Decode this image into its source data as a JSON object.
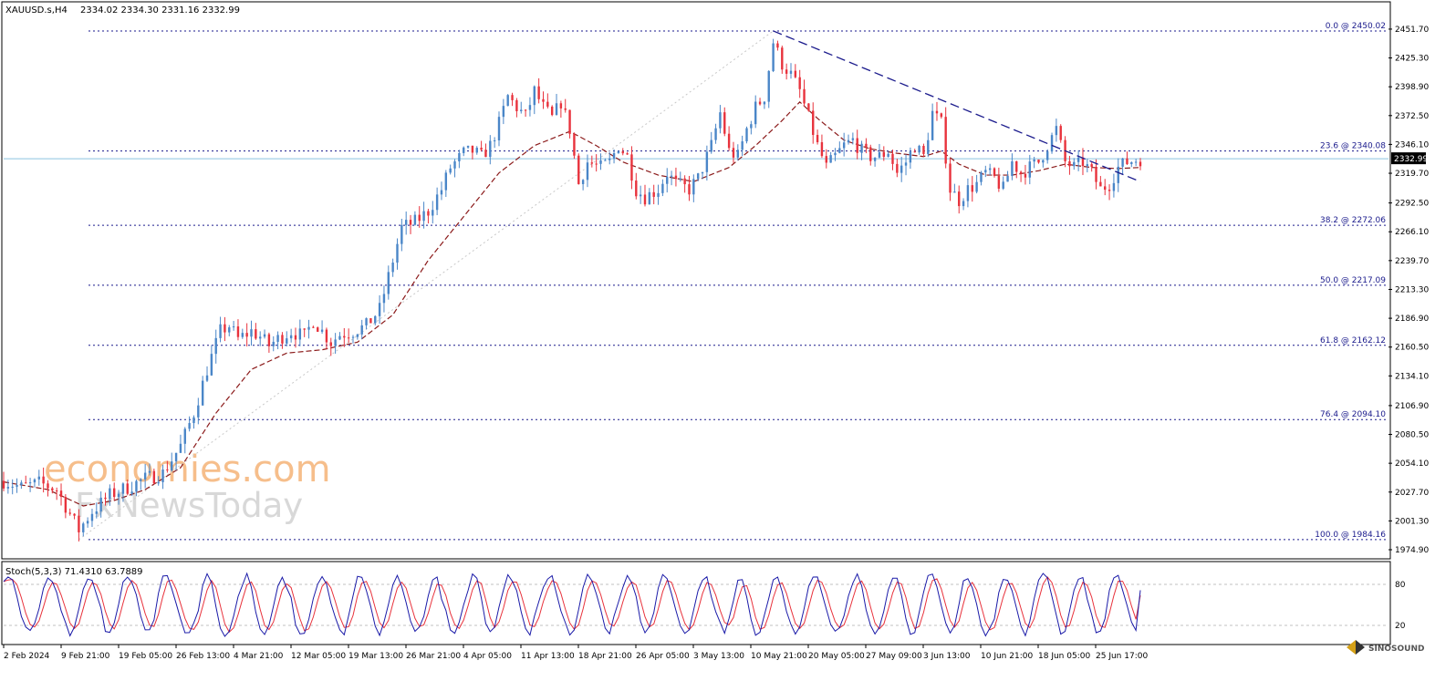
{
  "header": {
    "symbol": "XAUUSD.s,H4",
    "ohlc": "2334.02 2334.30 2331.16 2332.99"
  },
  "current_price_label": "2332.99",
  "watermark": {
    "line1": "economies.com",
    "line2": "FxNewsToday"
  },
  "logo_text": "SINOSOUND",
  "colors": {
    "bull": "#4a86c8",
    "bear": "#e8323c",
    "ma": "#8b1a1a",
    "fib": "#1a1a8c",
    "trend": "#1a1a8c",
    "stoch_main": "#1a1aa8",
    "stoch_signal": "#e8323c",
    "grid": "#c0c0c0",
    "text": "#000000"
  },
  "chart_data": [
    {
      "type": "candlestick",
      "title": "XAUUSD.s,H4",
      "ylim": [
        1974.9,
        2460.0
      ],
      "y_ticks": [
        "2451.70",
        "2425.30",
        "2398.90",
        "2372.50",
        "2346.10",
        "2319.70",
        "2292.50",
        "2266.10",
        "2239.70",
        "2213.30",
        "2186.90",
        "2160.50",
        "2134.10",
        "2106.90",
        "2080.50",
        "2054.10",
        "2027.70",
        "2001.30",
        "1974.90"
      ],
      "x_ticks": [
        "2 Feb 2024",
        "9 Feb 21:00",
        "19 Feb 05:00",
        "26 Feb 13:00",
        "4 Mar 21:00",
        "12 Mar 05:00",
        "19 Mar 13:00",
        "26 Mar 21:00",
        "4 Apr 05:00",
        "11 Apr 13:00",
        "18 Apr 21:00",
        "26 Apr 05:00",
        "3 May 13:00",
        "10 May 21:00",
        "20 May 05:00",
        "27 May 09:00",
        "3 Jun 13:00",
        "10 Jun 21:00",
        "18 Jun 05:00",
        "25 Jun 17:00"
      ],
      "current_price": 2332.99,
      "price_path": [
        [
          0,
          2038
        ],
        [
          4,
          2032
        ],
        [
          8,
          2036
        ],
        [
          12,
          2030
        ],
        [
          14,
          2015
        ],
        [
          17,
          1993
        ],
        [
          20,
          2010
        ],
        [
          24,
          2025
        ],
        [
          28,
          2032
        ],
        [
          32,
          2040
        ],
        [
          36,
          2045
        ],
        [
          40,
          2070
        ],
        [
          43,
          2100
        ],
        [
          46,
          2140
        ],
        [
          49,
          2175
        ],
        [
          51,
          2180
        ],
        [
          53,
          2168
        ],
        [
          56,
          2175
        ],
        [
          58,
          2170
        ],
        [
          60,
          2162
        ],
        [
          62,
          2168
        ],
        [
          65,
          2175
        ],
        [
          68,
          2170
        ],
        [
          70,
          2185
        ],
        [
          72,
          2175
        ],
        [
          74,
          2165
        ],
        [
          76,
          2172
        ],
        [
          79,
          2175
        ],
        [
          82,
          2180
        ],
        [
          85,
          2195
        ],
        [
          88,
          2240
        ],
        [
          90,
          2270
        ],
        [
          93,
          2275
        ],
        [
          96,
          2285
        ],
        [
          99,
          2305
        ],
        [
          101,
          2325
        ],
        [
          104,
          2338
        ],
        [
          106,
          2340
        ],
        [
          108,
          2335
        ],
        [
          110,
          2345
        ],
        [
          112,
          2365
        ],
        [
          114,
          2390
        ],
        [
          116,
          2380
        ],
        [
          118,
          2372
        ],
        [
          120,
          2395
        ],
        [
          122,
          2380
        ],
        [
          124,
          2370
        ],
        [
          126,
          2385
        ],
        [
          128,
          2360
        ],
        [
          130,
          2310
        ],
        [
          132,
          2330
        ],
        [
          135,
          2325
        ],
        [
          137,
          2330
        ],
        [
          139,
          2345
        ],
        [
          141,
          2335
        ],
        [
          143,
          2305
        ],
        [
          145,
          2298
        ],
        [
          148,
          2305
        ],
        [
          150,
          2320
        ],
        [
          152,
          2310
        ],
        [
          155,
          2305
        ],
        [
          157,
          2315
        ],
        [
          160,
          2345
        ],
        [
          162,
          2375
        ],
        [
          164,
          2340
        ],
        [
          166,
          2335
        ],
        [
          168,
          2360
        ],
        [
          170,
          2380
        ],
        [
          172,
          2390
        ],
        [
          174,
          2440
        ],
        [
          176,
          2420
        ],
        [
          178,
          2410
        ],
        [
          180,
          2395
        ],
        [
          182,
          2370
        ],
        [
          184,
          2345
        ],
        [
          186,
          2325
        ],
        [
          188,
          2335
        ],
        [
          190,
          2345
        ],
        [
          192,
          2350
        ],
        [
          194,
          2340
        ],
        [
          196,
          2335
        ],
        [
          198,
          2335
        ],
        [
          200,
          2340
        ],
        [
          202,
          2320
        ],
        [
          204,
          2330
        ],
        [
          206,
          2345
        ],
        [
          208,
          2335
        ],
        [
          210,
          2375
        ],
        [
          212,
          2365
        ],
        [
          214,
          2305
        ],
        [
          216,
          2295
        ],
        [
          218,
          2305
        ],
        [
          220,
          2310
        ],
        [
          222,
          2320
        ],
        [
          224,
          2315
        ],
        [
          226,
          2305
        ],
        [
          228,
          2330
        ],
        [
          230,
          2320
        ],
        [
          232,
          2325
        ],
        [
          234,
          2330
        ],
        [
          236,
          2345
        ],
        [
          238,
          2360
        ],
        [
          240,
          2330
        ],
        [
          242,
          2325
        ],
        [
          244,
          2330
        ],
        [
          246,
          2320
        ],
        [
          248,
          2305
        ],
        [
          250,
          2310
        ],
        [
          252,
          2325
        ],
        [
          254,
          2330
        ],
        [
          256,
          2332
        ],
        [
          257,
          2333
        ]
      ],
      "moving_average": [
        [
          0,
          2037
        ],
        [
          10,
          2030
        ],
        [
          18,
          2015
        ],
        [
          25,
          2020
        ],
        [
          32,
          2030
        ],
        [
          40,
          2050
        ],
        [
          48,
          2100
        ],
        [
          56,
          2140
        ],
        [
          64,
          2155
        ],
        [
          72,
          2158
        ],
        [
          80,
          2165
        ],
        [
          88,
          2190
        ],
        [
          96,
          2240
        ],
        [
          104,
          2280
        ],
        [
          112,
          2320
        ],
        [
          120,
          2345
        ],
        [
          128,
          2358
        ],
        [
          134,
          2345
        ],
        [
          140,
          2330
        ],
        [
          148,
          2318
        ],
        [
          156,
          2312
        ],
        [
          164,
          2325
        ],
        [
          170,
          2345
        ],
        [
          176,
          2368
        ],
        [
          180,
          2385
        ],
        [
          184,
          2370
        ],
        [
          190,
          2350
        ],
        [
          196,
          2342
        ],
        [
          202,
          2338
        ],
        [
          208,
          2335
        ],
        [
          212,
          2340
        ],
        [
          216,
          2328
        ],
        [
          222,
          2318
        ],
        [
          228,
          2318
        ],
        [
          234,
          2322
        ],
        [
          240,
          2328
        ],
        [
          246,
          2325
        ],
        [
          252,
          2324
        ],
        [
          257,
          2325
        ]
      ]
    },
    {
      "type": "fibonacci_levels",
      "levels": [
        {
          "label": "0.0 @ 2450.02",
          "value": 2450.02
        },
        {
          "label": "23.6 @ 2340.08",
          "value": 2340.08
        },
        {
          "label": "38.2 @ 2272.06",
          "value": 2272.06
        },
        {
          "label": "50.0 @ 2217.09",
          "value": 2217.09
        },
        {
          "label": "61.8 @ 2162.12",
          "value": 2162.12
        },
        {
          "label": "76.4 @ 2094.10",
          "value": 2094.1
        },
        {
          "label": "100.0 @ 1984.16",
          "value": 1984.16
        }
      ],
      "trendline": [
        [
          174,
          2450.02
        ],
        [
          257,
          2312
        ]
      ],
      "anchor_line": [
        [
          17,
          1984.16
        ],
        [
          174,
          2450.02
        ]
      ]
    },
    {
      "type": "line",
      "title": "Stoch(5,3,3) 71.4310 63.7889",
      "ylim": [
        0,
        100
      ],
      "y_ticks": [
        "80",
        "20"
      ],
      "levels": [
        80,
        20
      ],
      "main_value": 71.431,
      "signal_value": 63.7889
    }
  ]
}
